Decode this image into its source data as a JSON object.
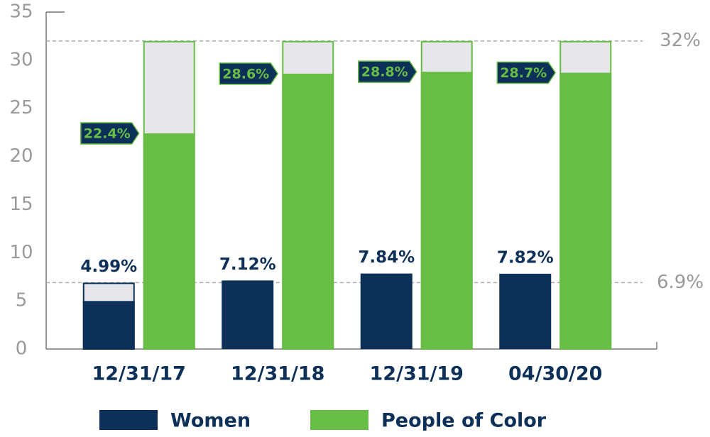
{
  "chart_data": {
    "type": "bar",
    "categories": [
      "12/31/17",
      "12/31/18",
      "12/31/19",
      "04/30/20"
    ],
    "series": [
      {
        "name": "Women",
        "color": "#0d3059",
        "values": [
          4.99,
          7.12,
          7.84,
          7.82
        ],
        "value_labels": [
          "4.99%",
          "7.12%",
          "7.84%",
          "7.82%"
        ],
        "target": {
          "value": 6.9,
          "label": "6.9%"
        }
      },
      {
        "name": "People of Color",
        "color": "#67bd45",
        "values": [
          22.4,
          28.6,
          28.8,
          28.7
        ],
        "value_labels": [
          "22.4%",
          "28.6%",
          "28.8%",
          "28.7%"
        ],
        "target": {
          "value": 32,
          "label": "32%"
        }
      }
    ],
    "ylim": [
      0,
      35
    ],
    "yticks": [
      0,
      5,
      10,
      15,
      20,
      25,
      30,
      35
    ],
    "grid": false,
    "legend": "bottom"
  }
}
